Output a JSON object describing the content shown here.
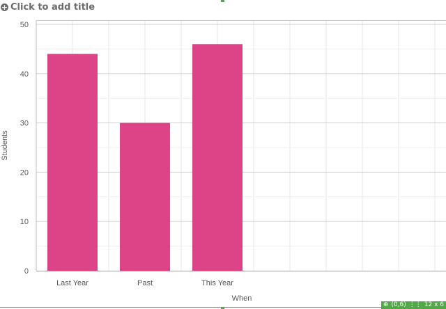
{
  "header": {
    "title_placeholder": "Click to add title",
    "add_icon": "plus-circle-icon"
  },
  "status": {
    "position": "(0,6)",
    "size": "12 x 6",
    "position_icon": "position-icon",
    "grid_icon": "grid-size-icon"
  },
  "colors": {
    "bar": "#dd4488",
    "accent": "#52a849",
    "gridline": "#e6e6e6",
    "axis_text": "#595959"
  },
  "chart_data": {
    "type": "bar",
    "categories": [
      "Last Year",
      "Past",
      "This Year"
    ],
    "values": [
      44,
      30,
      46
    ],
    "xlabel": "When",
    "ylabel": "Students",
    "ylim": [
      0,
      50
    ],
    "yticks": [
      0,
      10,
      20,
      30,
      40,
      50
    ],
    "grid": true
  }
}
